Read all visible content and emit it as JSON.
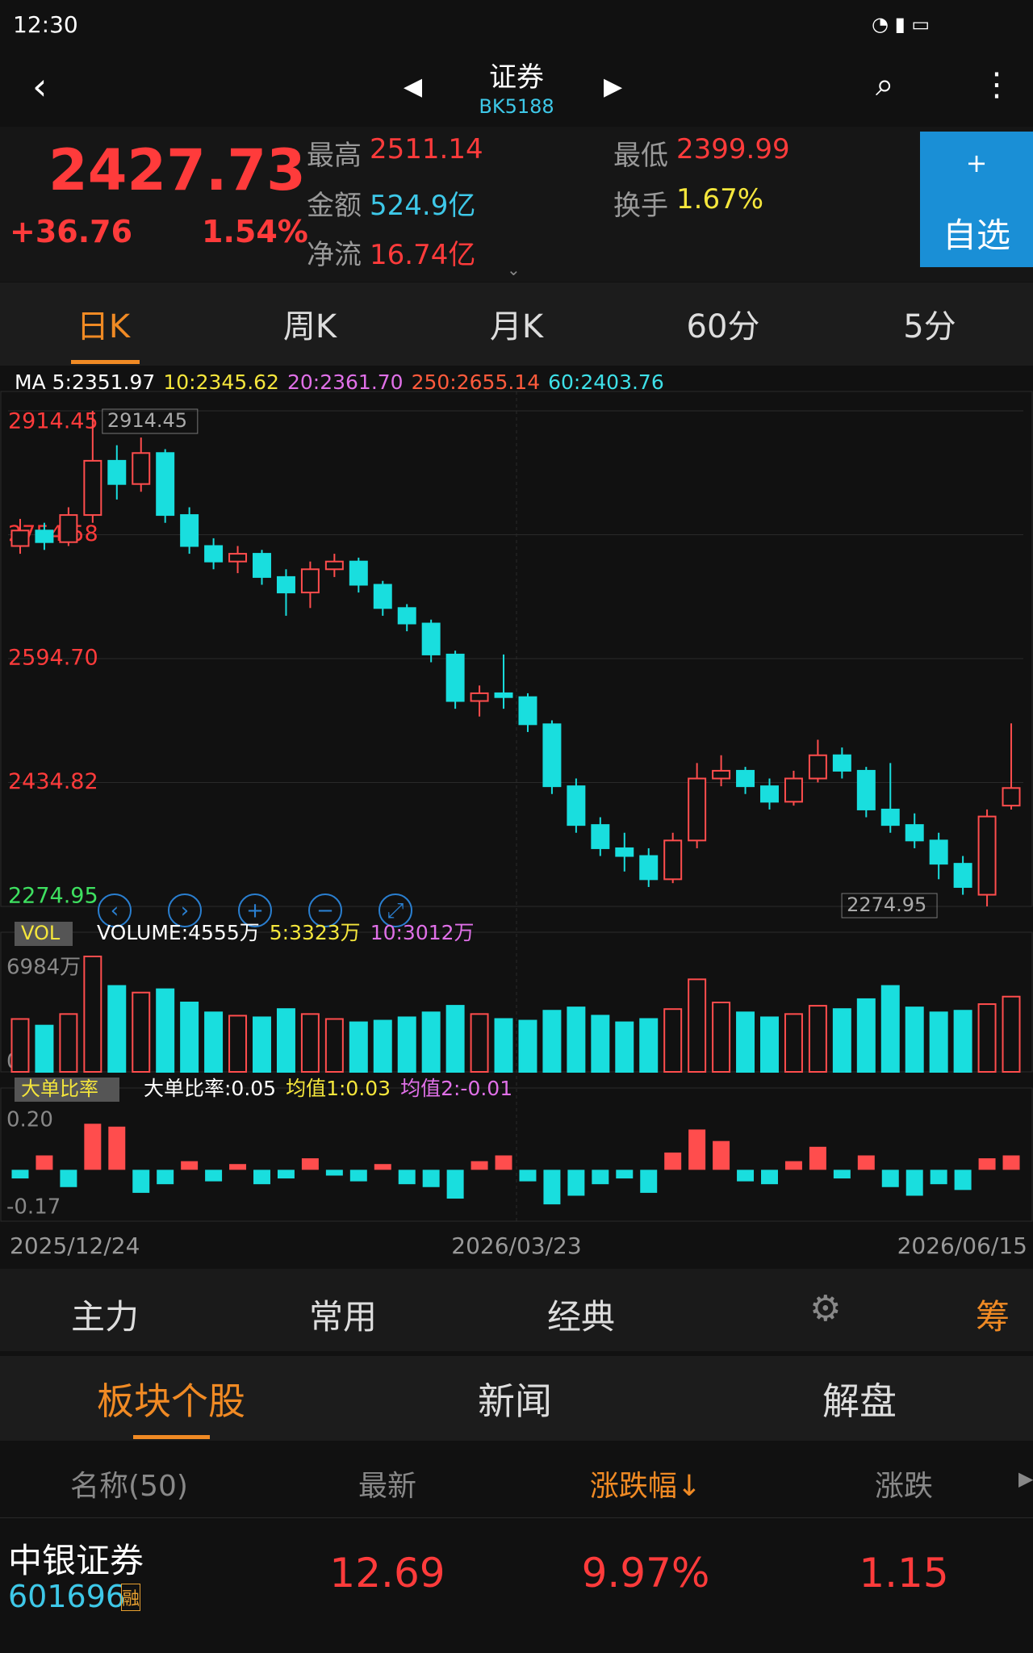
{
  "status": {
    "time": "12:30"
  },
  "header": {
    "title": "证券",
    "code": "BK5188"
  },
  "quote": {
    "price": "2427.73",
    "change": "+36.76",
    "change_pct": "1.54%",
    "fields": [
      {
        "label": "最高",
        "value": "2511.14"
      },
      {
        "label": "最低",
        "value": "2399.99"
      },
      {
        "label": "金额",
        "value": "524.9亿"
      },
      {
        "label": "换手",
        "value": "1.67%"
      },
      {
        "label": "净流",
        "value": "16.74亿"
      }
    ],
    "watch": {
      "icon": "+",
      "label": "自选"
    }
  },
  "periods": [
    "日K",
    "周K",
    "月K",
    "60分",
    "5分"
  ],
  "chart_data": {
    "type": "candlestick",
    "ma_legend": [
      {
        "text": "MA 5:2351.97",
        "color": "#ffffff"
      },
      {
        "text": "10:2345.62",
        "color": "#f5e63c"
      },
      {
        "text": "20:2361.70",
        "color": "#e070e8"
      },
      {
        "text": "250:2655.14",
        "color": "#ff5b3c"
      },
      {
        "text": "60:2403.76",
        "color": "#3ee0e8"
      }
    ],
    "ylim": [
      2274.95,
      2914.45
    ],
    "yticks": [
      2914.45,
      {
        "value": 2754.58,
        "label": "2754.58"
      },
      {
        "value": 2594.7,
        "label": "2594.70"
      },
      {
        "value": 2434.82,
        "label": "2434.82"
      },
      2274.95
    ],
    "max_marker": "2914.45",
    "min_marker": "2274.95",
    "up_color": "#ff4d4d",
    "down_color": "#19dede",
    "candles": [
      [
        2740,
        2760,
        2775,
        2730
      ],
      [
        2760,
        2745,
        2770,
        2735
      ],
      [
        2745,
        2780,
        2790,
        2740
      ],
      [
        2780,
        2850,
        2914.45,
        2770
      ],
      [
        2850,
        2820,
        2870,
        2800
      ],
      [
        2820,
        2860,
        2880,
        2810
      ],
      [
        2860,
        2780,
        2865,
        2770
      ],
      [
        2780,
        2740,
        2790,
        2730
      ],
      [
        2740,
        2720,
        2750,
        2710
      ],
      [
        2720,
        2730,
        2740,
        2705
      ],
      [
        2730,
        2700,
        2735,
        2690
      ],
      [
        2700,
        2680,
        2710,
        2650
      ],
      [
        2680,
        2710,
        2720,
        2660
      ],
      [
        2710,
        2720,
        2730,
        2700
      ],
      [
        2720,
        2690,
        2725,
        2680
      ],
      [
        2690,
        2660,
        2695,
        2650
      ],
      [
        2660,
        2640,
        2665,
        2630
      ],
      [
        2640,
        2600,
        2645,
        2590
      ],
      [
        2600,
        2540,
        2605,
        2530
      ],
      [
        2540,
        2550,
        2560,
        2520
      ],
      [
        2550,
        2545,
        2600,
        2530
      ],
      [
        2545,
        2510,
        2550,
        2500
      ],
      [
        2510,
        2430,
        2515,
        2420
      ],
      [
        2430,
        2380,
        2440,
        2370
      ],
      [
        2380,
        2350,
        2390,
        2340
      ],
      [
        2350,
        2340,
        2370,
        2320
      ],
      [
        2340,
        2310,
        2350,
        2300
      ],
      [
        2310,
        2360,
        2370,
        2305
      ],
      [
        2360,
        2440,
        2460,
        2350
      ],
      [
        2440,
        2450,
        2470,
        2430
      ],
      [
        2450,
        2430,
        2455,
        2420
      ],
      [
        2430,
        2410,
        2440,
        2400
      ],
      [
        2410,
        2440,
        2450,
        2405
      ],
      [
        2440,
        2470,
        2490,
        2435
      ],
      [
        2470,
        2450,
        2480,
        2440
      ],
      [
        2450,
        2400,
        2455,
        2390
      ],
      [
        2400,
        2380,
        2460,
        2370
      ],
      [
        2380,
        2360,
        2395,
        2350
      ],
      [
        2360,
        2330,
        2370,
        2310
      ],
      [
        2330,
        2300,
        2340,
        2290
      ],
      [
        2290,
        2390.97,
        2400,
        2274.95
      ],
      [
        2405,
        2427.73,
        2511.14,
        2399.99
      ]
    ],
    "x_labels": [
      "2025/12/24",
      "2026/03/23",
      "2026/06/15"
    ],
    "volume": {
      "legend_tag": "VOL",
      "legend": [
        {
          "text": "VOLUME:4555万",
          "color": "#ffffff"
        },
        {
          "text": "5:3323万",
          "color": "#f5e63c"
        },
        {
          "text": "10:3012万",
          "color": "#e070e8"
        }
      ],
      "ylim": [
        0,
        6984
      ],
      "yticks": [
        {
          "value": 6984,
          "label": "6984万"
        },
        0
      ],
      "values": [
        3200,
        2800,
        3500,
        6984,
        5200,
        4800,
        5000,
        4200,
        3600,
        3400,
        3300,
        3800,
        3500,
        3200,
        3000,
        3100,
        3300,
        3600,
        4000,
        3500,
        3200,
        3100,
        3700,
        3900,
        3400,
        3000,
        3200,
        3800,
        5600,
        4200,
        3600,
        3300,
        3500,
        4000,
        3800,
        4400,
        5200,
        3900,
        3600,
        3700,
        4100,
        4555
      ]
    },
    "ratio": {
      "legend_tag": "大单比率",
      "legend": [
        {
          "text": "大单比率:0.05",
          "color": "#ffffff"
        },
        {
          "text": "均值1:0.03",
          "color": "#f5e63c"
        },
        {
          "text": "均值2:-0.01",
          "color": "#e070e8"
        }
      ],
      "ylim": [
        -0.17,
        0.2
      ],
      "yticks": [
        {
          "value": 0.2,
          "label": "0.20"
        },
        -0.17
      ],
      "values": [
        -0.03,
        0.05,
        -0.06,
        0.16,
        0.15,
        -0.08,
        -0.05,
        0.03,
        -0.04,
        0.02,
        -0.05,
        -0.03,
        0.04,
        -0.02,
        -0.04,
        0.02,
        -0.05,
        -0.06,
        -0.1,
        0.03,
        0.05,
        -0.04,
        -0.12,
        -0.09,
        -0.05,
        -0.03,
        -0.08,
        0.06,
        0.14,
        0.1,
        -0.04,
        -0.05,
        0.03,
        0.08,
        -0.03,
        0.05,
        -0.06,
        -0.09,
        -0.05,
        -0.07,
        0.04,
        0.05
      ]
    }
  },
  "toolbar": [
    "主力",
    "常用",
    "经典",
    "筹"
  ],
  "section_tabs": [
    "板块个股",
    "新闻",
    "解盘"
  ],
  "table": {
    "columns": [
      "名称(50)",
      "最新",
      "涨跌幅↓",
      "涨跌"
    ],
    "rows": [
      {
        "name": "中银证券",
        "code": "601696",
        "tag": "融",
        "latest": "12.69",
        "change_pct": "9.97%",
        "change": "1.15"
      }
    ]
  }
}
